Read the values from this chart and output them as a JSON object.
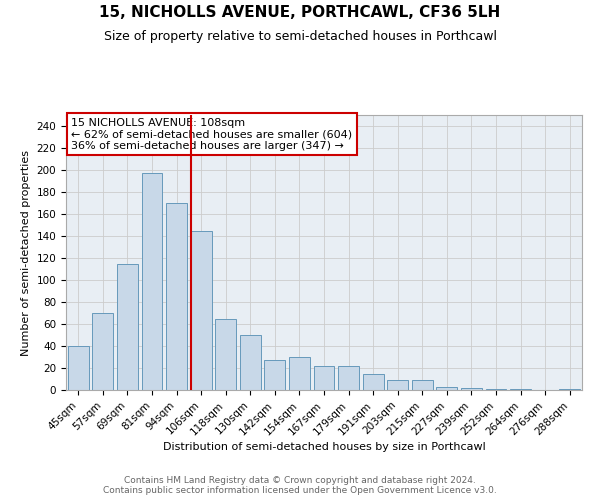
{
  "title": "15, NICHOLLS AVENUE, PORTHCAWL, CF36 5LH",
  "subtitle": "Size of property relative to semi-detached houses in Porthcawl",
  "xlabel": "Distribution of semi-detached houses by size in Porthcawl",
  "ylabel": "Number of semi-detached properties",
  "annotation_title": "15 NICHOLLS AVENUE: 108sqm",
  "annotation_line1": "← 62% of semi-detached houses are smaller (604)",
  "annotation_line2": "36% of semi-detached houses are larger (347) →",
  "footer": "Contains HM Land Registry data © Crown copyright and database right 2024.\nContains public sector information licensed under the Open Government Licence v3.0.",
  "categories": [
    "45sqm",
    "57sqm",
    "69sqm",
    "81sqm",
    "94sqm",
    "106sqm",
    "118sqm",
    "130sqm",
    "142sqm",
    "154sqm",
    "167sqm",
    "179sqm",
    "191sqm",
    "203sqm",
    "215sqm",
    "227sqm",
    "239sqm",
    "252sqm",
    "264sqm",
    "276sqm",
    "288sqm"
  ],
  "values": [
    40,
    70,
    115,
    197,
    170,
    145,
    65,
    50,
    27,
    30,
    22,
    22,
    15,
    9,
    9,
    3,
    2,
    1,
    1,
    0,
    1
  ],
  "bar_color": "#c8d8e8",
  "bar_edge_color": "#6699bb",
  "highlight_line_color": "#cc0000",
  "box_edge_color": "#cc0000",
  "highlight_bar_index": 5,
  "ylim": [
    0,
    250
  ],
  "yticks": [
    0,
    20,
    40,
    60,
    80,
    100,
    120,
    140,
    160,
    180,
    200,
    220,
    240
  ],
  "title_fontsize": 11,
  "subtitle_fontsize": 9,
  "axis_label_fontsize": 8,
  "tick_fontsize": 7.5,
  "annotation_fontsize": 8,
  "grid_color": "#cccccc",
  "bg_color": "#e8eef4",
  "footer_color": "#666666",
  "footer_fontsize": 6.5
}
